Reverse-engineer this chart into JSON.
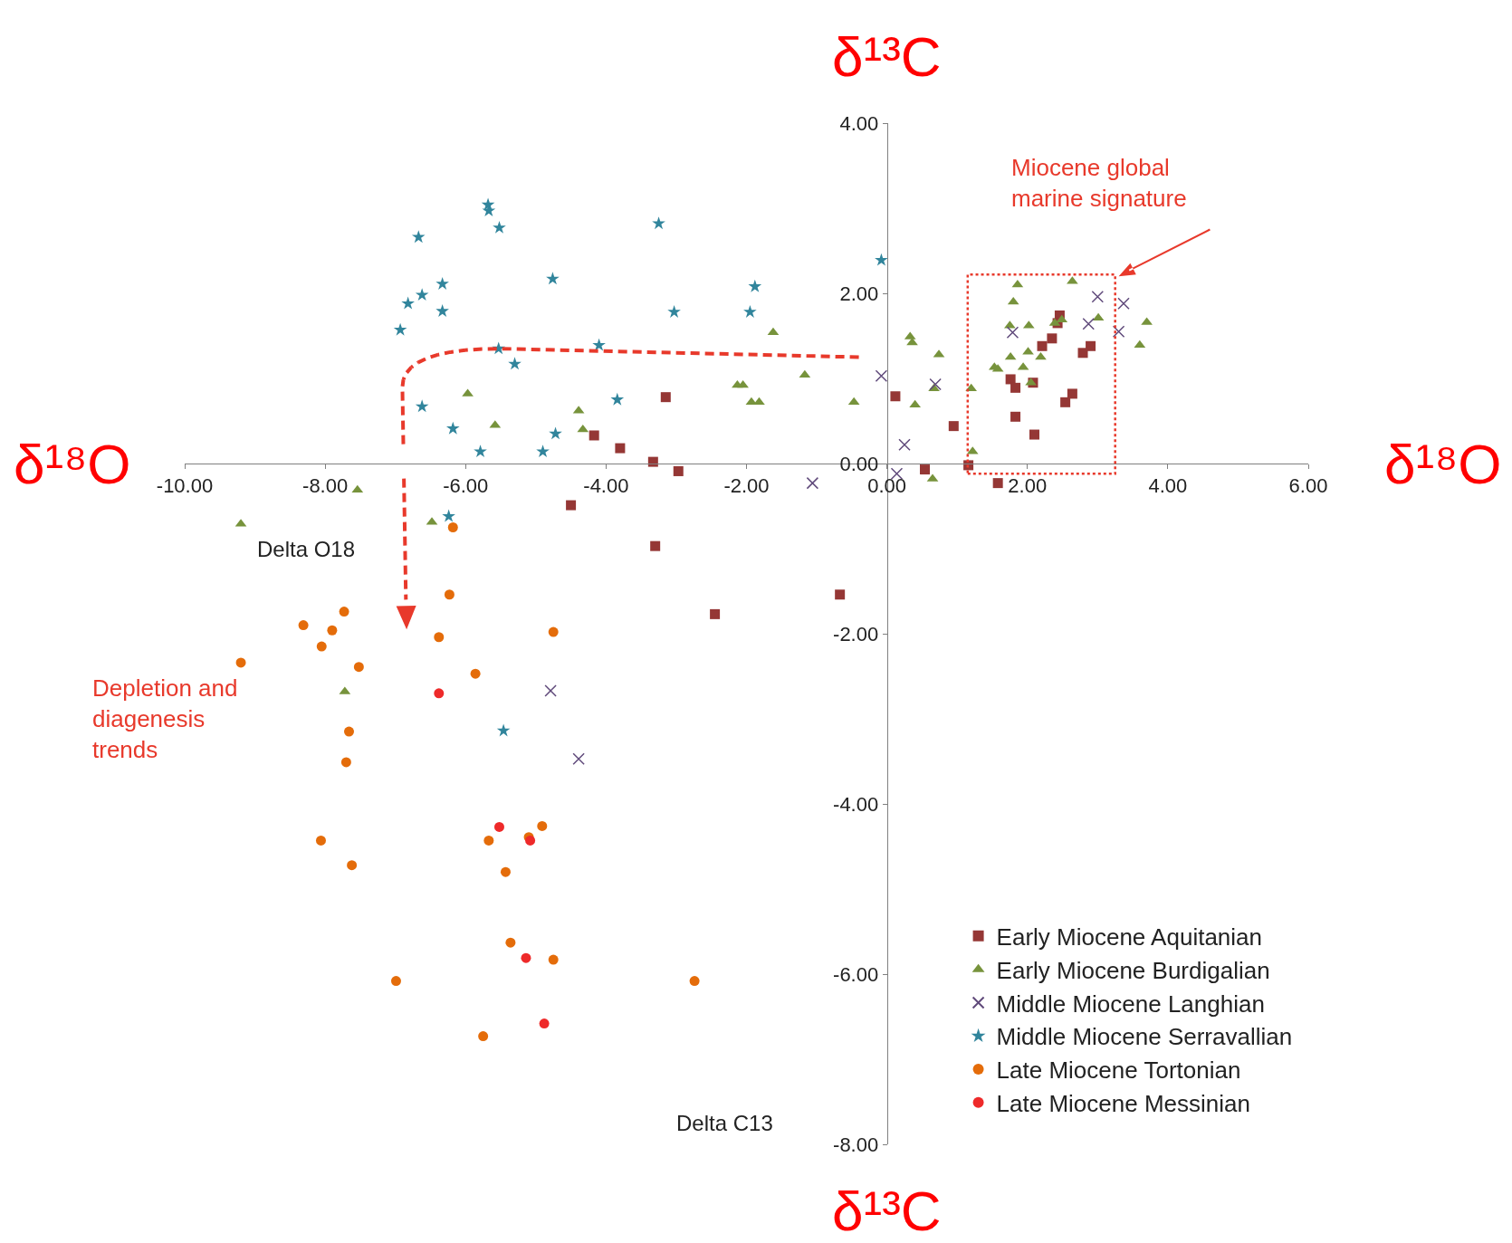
{
  "chart_data": {
    "type": "scatter",
    "xlabel": "Delta O18",
    "ylabel": "Delta C13",
    "annotations": [
      "δ¹³C",
      "δ¹³C",
      "δ¹⁸O",
      "δ¹⁸O",
      "Miocene global marine signature",
      "Depletion and diagenesis trends"
    ],
    "xlim": [
      -10,
      6
    ],
    "ylim": [
      -8,
      4
    ],
    "xticks": [
      {
        "value": -10,
        "label": "-10.00"
      },
      {
        "value": -8,
        "label": "-8.00"
      },
      {
        "value": -6,
        "label": "-6.00"
      },
      {
        "value": -4,
        "label": "-4.00"
      },
      {
        "value": -2,
        "label": "-2.00"
      },
      {
        "value": 0,
        "label": "0.00"
      },
      {
        "value": 2,
        "label": "2.00"
      },
      {
        "value": 4,
        "label": "4.00"
      },
      {
        "value": 6,
        "label": "6.00"
      }
    ],
    "yticks": [
      {
        "value": -8,
        "label": "-8.00"
      },
      {
        "value": -6,
        "label": "-6.00"
      },
      {
        "value": -4,
        "label": "-4.00"
      },
      {
        "value": -2,
        "label": "-2.00"
      },
      {
        "value": 0,
        "label": "0.00"
      },
      {
        "value": 2,
        "label": "2.00"
      },
      {
        "value": 4,
        "label": "4.00"
      }
    ],
    "legend": "bottom right",
    "series": [
      {
        "name": "Early Miocene Aquitanian",
        "color": "#953735",
        "marker": "square",
        "x": [
          -3.15,
          -4.17,
          -3.8,
          -3.33,
          -2.97,
          -4.5,
          -3.3,
          -2.45,
          -0.67,
          0.12,
          0.95,
          0.54,
          1.16,
          1.58,
          1.76,
          1.83,
          1.83,
          2.1,
          2.08,
          2.21,
          2.35,
          2.46,
          2.43,
          2.54,
          2.64,
          2.79,
          2.9
        ],
        "values": [
          0.78,
          0.33,
          0.18,
          0.02,
          -0.09,
          -0.49,
          -0.97,
          -1.77,
          -1.54,
          0.79,
          0.44,
          -0.07,
          -0.02,
          -0.23,
          0.99,
          0.89,
          0.55,
          0.34,
          0.95,
          1.38,
          1.47,
          1.74,
          1.65,
          0.72,
          0.82,
          1.3,
          1.38
        ]
      },
      {
        "name": "Early Miocene Burdigalian",
        "color": "#77933c",
        "marker": "triangle",
        "x": [
          -9.2,
          -7.54,
          -6.48,
          -7.72,
          -5.97,
          -5.58,
          -4.39,
          -4.33,
          -2.13,
          -2.05,
          -1.93,
          -1.82,
          -1.62,
          -1.17,
          -0.47,
          0.33,
          0.36,
          0.4,
          0.65,
          0.67,
          0.74,
          1.2,
          1.22,
          1.53,
          1.58,
          1.75,
          1.76,
          1.8,
          1.86,
          1.94,
          2.01,
          2.02,
          2.05,
          2.19,
          2.39,
          2.49,
          2.64,
          3.01,
          3.6,
          3.7
        ],
        "values": [
          -0.71,
          -0.31,
          -0.69,
          -2.68,
          0.82,
          0.45,
          0.62,
          0.4,
          0.92,
          0.92,
          0.72,
          0.72,
          1.54,
          1.04,
          0.72,
          1.49,
          1.42,
          0.69,
          -0.18,
          0.88,
          1.28,
          0.88,
          0.14,
          1.13,
          1.11,
          1.62,
          1.25,
          1.9,
          2.1,
          1.13,
          1.31,
          1.62,
          0.95,
          1.25,
          1.65,
          1.69,
          2.14,
          1.71,
          1.39,
          1.66
        ]
      },
      {
        "name": "Middle Miocene Langhian",
        "color": "#604a7b",
        "marker": "cross",
        "x": [
          -1.06,
          -0.08,
          0.14,
          0.25,
          0.69,
          1.79,
          2.87,
          3.0,
          3.3,
          3.37,
          -4.79,
          -4.39
        ],
        "values": [
          -0.23,
          1.03,
          -0.12,
          0.22,
          0.93,
          1.54,
          1.64,
          1.96,
          1.55,
          1.88,
          -2.67,
          -3.47
        ]
      },
      {
        "name": "Middle Miocene Serravallian",
        "color": "#31859c",
        "marker": "star",
        "x": [
          -6.93,
          -6.82,
          -6.67,
          -6.62,
          -6.62,
          -6.33,
          -6.33,
          -6.18,
          -6.24,
          -5.79,
          -5.68,
          -5.67,
          -5.52,
          -5.53,
          -5.3,
          -5.46,
          -4.9,
          -4.76,
          -4.72,
          -4.1,
          -3.84,
          -3.25,
          -3.03,
          -1.95,
          -1.88,
          -0.08
        ],
        "values": [
          1.57,
          1.88,
          2.66,
          1.98,
          0.67,
          2.11,
          1.79,
          0.41,
          -0.62,
          0.14,
          3.04,
          2.97,
          2.77,
          1.35,
          1.17,
          -3.14,
          0.14,
          2.17,
          0.35,
          1.39,
          0.75,
          2.82,
          1.78,
          1.78,
          2.08,
          2.39
        ]
      },
      {
        "name": "Late Miocene Tortonian",
        "color": "#e46c0a",
        "marker": "circle",
        "x": [
          -9.2,
          -8.31,
          -8.05,
          -7.9,
          -7.73,
          -7.52,
          -7.66,
          -7.7,
          -8.06,
          -7.62,
          -6.99,
          -6.38,
          -6.23,
          -6.18,
          -5.86,
          -5.67,
          -5.43,
          -5.36,
          -5.75,
          -5.1,
          -4.91,
          -4.75,
          -4.75,
          -2.74
        ],
        "values": [
          -2.34,
          -1.9,
          -2.15,
          -1.96,
          -1.74,
          -2.39,
          -3.15,
          -3.51,
          -4.43,
          -4.72,
          -6.08,
          -2.04,
          -1.54,
          -0.75,
          -2.47,
          -4.43,
          -4.8,
          -5.63,
          -6.73,
          -4.39,
          -4.26,
          -1.98,
          -5.83,
          -6.08
        ]
      },
      {
        "name": "Late Miocene Messinian",
        "color": "#ee2a2a",
        "marker": "circle",
        "x": [
          -6.38,
          -5.52,
          -5.08,
          -5.14,
          -4.88
        ],
        "values": [
          -2.7,
          -4.27,
          -4.43,
          -5.81,
          -6.58
        ]
      }
    ]
  }
}
